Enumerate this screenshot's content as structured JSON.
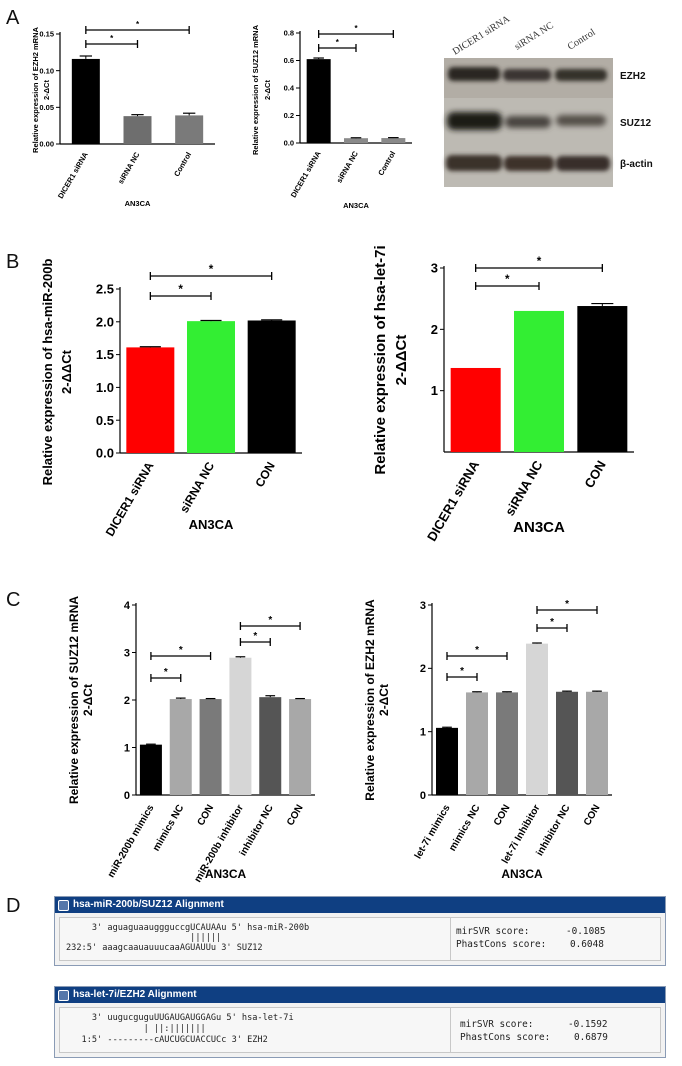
{
  "panels": {
    "a": "A",
    "b": "B",
    "c": "C",
    "d": "D"
  },
  "chart_data": [
    {
      "id": "A1",
      "type": "bar",
      "ylabel_lines": [
        "Relative expression of EZH2 mRNA",
        "2-ΔCt"
      ],
      "xlabel": "AN3CA",
      "categories": [
        "DICER1 siRNA",
        "siRNA NC",
        "Control"
      ],
      "values": [
        0.116,
        0.038,
        0.039
      ],
      "errors": [
        0.004,
        0.002,
        0.003
      ],
      "colors": [
        "#000000",
        "#6e6e6e",
        "#7a7a7a"
      ],
      "ylim": [
        0,
        0.15
      ],
      "yticks": [
        0.0,
        0.05,
        0.1,
        0.15
      ],
      "ytick_labels": [
        "0.00",
        "0.05",
        "0.10",
        "0.15"
      ],
      "sig": [
        {
          "from": 0,
          "to": 1,
          "label": "*"
        },
        {
          "from": 0,
          "to": 2,
          "label": "*"
        }
      ]
    },
    {
      "id": "A2",
      "type": "bar",
      "ylabel_lines": [
        "Relative expression of SUZ12 mRNA",
        "2-ΔCt"
      ],
      "xlabel": "AN3CA",
      "categories": [
        "DICER1 siRNA",
        "siRNA NC",
        "Control"
      ],
      "values": [
        0.61,
        0.035,
        0.036
      ],
      "errors": [
        0.008,
        0.003,
        0.003
      ],
      "colors": [
        "#000000",
        "#8a8a8a",
        "#8a8a8a"
      ],
      "ylim": [
        0,
        0.8
      ],
      "yticks": [
        0.0,
        0.2,
        0.4,
        0.6,
        0.8
      ],
      "ytick_labels": [
        "0.0",
        "0.2",
        "0.4",
        "0.6",
        "0.8"
      ],
      "sig": [
        {
          "from": 0,
          "to": 1,
          "label": "*"
        },
        {
          "from": 0,
          "to": 2,
          "label": "*"
        }
      ]
    },
    {
      "id": "B1",
      "type": "bar",
      "ylabel_lines": [
        "Relative expression of hsa-miR-200b",
        "2-ΔΔCt"
      ],
      "xlabel": "AN3CA",
      "categories": [
        "DICER1 siRNA",
        "siRNA NC",
        "CON"
      ],
      "values": [
        1.61,
        2.01,
        2.02
      ],
      "errors": [
        0.01,
        0.01,
        0.01
      ],
      "colors": [
        "#ff0000",
        "#33ee33",
        "#000000"
      ],
      "ylim": [
        0,
        2.5
      ],
      "yticks": [
        0.0,
        0.5,
        1.0,
        1.5,
        2.0,
        2.5
      ],
      "ytick_labels": [
        "0.0",
        "0.5",
        "1.0",
        "1.5",
        "2.0",
        "2.5"
      ],
      "sig": [
        {
          "from": 0,
          "to": 1,
          "label": "*"
        },
        {
          "from": 0,
          "to": 2,
          "label": "*"
        }
      ]
    },
    {
      "id": "B2",
      "type": "bar",
      "ylabel_lines": [
        "Relative expression of hsa-let-7i",
        "2-ΔΔCt"
      ],
      "xlabel": "AN3CA",
      "categories": [
        "DICER1 siRNA",
        "siRNA NC",
        "CON"
      ],
      "values": [
        1.37,
        2.3,
        2.38
      ],
      "errors": [
        0.0,
        0.0,
        0.04
      ],
      "colors": [
        "#ff0000",
        "#33ee33",
        "#000000"
      ],
      "ylim": [
        0,
        3
      ],
      "yticks": [
        1,
        2,
        3
      ],
      "ytick_labels": [
        "1",
        "2",
        "3"
      ],
      "sig": [
        {
          "from": 0,
          "to": 1,
          "label": "*"
        },
        {
          "from": 0,
          "to": 2,
          "label": "*"
        }
      ]
    },
    {
      "id": "C1",
      "type": "bar",
      "ylabel_lines": [
        "Relative expression of SUZ12 mRNA",
        "2-ΔCt"
      ],
      "xlabel": "AN3CA",
      "categories": [
        "miR-200b mimics",
        "mimics NC",
        "CON",
        "miR-200b inhibitor",
        "inhibitor NC",
        "CON"
      ],
      "values": [
        1.06,
        2.02,
        2.02,
        2.89,
        2.06,
        2.02
      ],
      "errors": [
        0.01,
        0.02,
        0.01,
        0.02,
        0.03,
        0.01
      ],
      "colors": [
        "#000000",
        "#a8a8a8",
        "#7a7a7a",
        "#d6d6d6",
        "#555555",
        "#a8a8a8"
      ],
      "ylim": [
        0,
        4
      ],
      "yticks": [
        0,
        1,
        2,
        3,
        4
      ],
      "ytick_labels": [
        "0",
        "1",
        "2",
        "3",
        "4"
      ],
      "sig": [
        {
          "from": 0,
          "to": 1,
          "label": "*"
        },
        {
          "from": 0,
          "to": 2,
          "label": "*"
        },
        {
          "from": 3,
          "to": 4,
          "label": "*"
        },
        {
          "from": 3,
          "to": 5,
          "label": "*"
        }
      ]
    },
    {
      "id": "C2",
      "type": "bar",
      "ylabel_lines": [
        "Relative expression of EZH2 mRNA",
        "2-ΔCt"
      ],
      "xlabel": "AN3CA",
      "categories": [
        "let-7i mimics",
        "mimics NC",
        "CON",
        "let-7i Inhibitor",
        "inhibitor NC",
        "CON"
      ],
      "values": [
        1.06,
        1.62,
        1.62,
        2.39,
        1.63,
        1.63
      ],
      "errors": [
        0.01,
        0.01,
        0.01,
        0.01,
        0.01,
        0.01
      ],
      "colors": [
        "#000000",
        "#a8a8a8",
        "#7a7a7a",
        "#d6d6d6",
        "#555555",
        "#a8a8a8"
      ],
      "ylim": [
        0,
        3
      ],
      "yticks": [
        0,
        1,
        2,
        3
      ],
      "ytick_labels": [
        "0",
        "1",
        "2",
        "3"
      ],
      "sig": [
        {
          "from": 0,
          "to": 1,
          "label": "*"
        },
        {
          "from": 0,
          "to": 2,
          "label": "*"
        },
        {
          "from": 3,
          "to": 4,
          "label": "*"
        },
        {
          "from": 3,
          "to": 5,
          "label": "*"
        }
      ]
    }
  ],
  "blot": {
    "lanes": [
      "DICER1 siRNA",
      "siRNA NC",
      "Control"
    ],
    "bands": [
      "EZH2",
      "SUZ12",
      "β-actin"
    ]
  },
  "alignments": [
    {
      "title": "hsa-miR-200b/SUZ12 Alignment",
      "lines": [
        "     3' aguaguaauggguccgUCAUAAu 5' hsa-miR-200b",
        "                        ||||||",
        "232:5' aaagcaauauuucaaAGUAUUu 3' SUZ12"
      ],
      "mirsvr_label": "mirSVR score:",
      "mirsvr_value": "-0.1085",
      "phastcons_label": "PhastCons score:",
      "phastcons_value": "0.6048"
    },
    {
      "title": "hsa-let-7i/EZH2 Alignment",
      "lines": [
        "     3' uugucguguUUGAUGAUGGAGu 5' hsa-let-7i",
        "               | ||:|||||||",
        "   1:5' ---------cAUCUGCUACCUCc 3' EZH2"
      ],
      "mirsvr_label": "mirSVR score:",
      "mirsvr_value": "-0.1592",
      "phastcons_label": "PhastCons score:",
      "phastcons_value": "0.6879"
    }
  ]
}
